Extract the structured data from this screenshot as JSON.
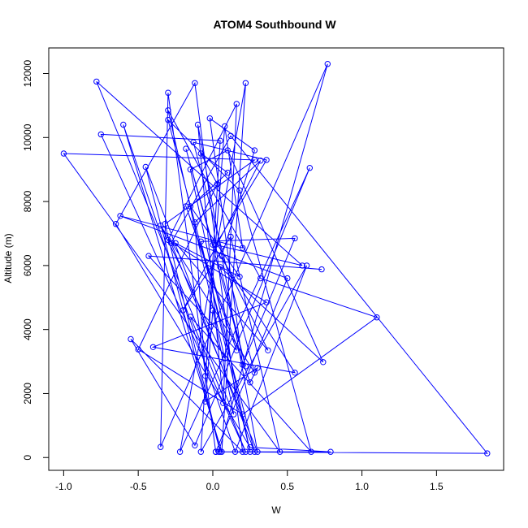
{
  "chart_data": {
    "type": "scatter",
    "title": "ATOM4 Southbound W",
    "xlabel": "W",
    "ylabel": "Altitude (m)",
    "xlim": [
      -1.1,
      1.95
    ],
    "ylim": [
      -400,
      12800
    ],
    "xticks": [
      -1.0,
      -0.5,
      0.0,
      0.5,
      1.0,
      1.5
    ],
    "xtick_labels": [
      "-1.0",
      "-0.5",
      "0.0",
      "0.5",
      "1.0",
      "1.5"
    ],
    "yticks": [
      0,
      2000,
      4000,
      6000,
      8000,
      10000,
      12000
    ],
    "ytick_labels": [
      "0",
      "2000",
      "4000",
      "6000",
      "8000",
      "10000",
      "12000"
    ],
    "grid": false,
    "series": [
      {
        "color": "#0000ff",
        "marker": "open-circle",
        "line": true,
        "x": [
          0.04,
          0.77,
          -0.35,
          -0.3,
          0.02,
          0.79,
          0.25,
          -0.65,
          -0.12,
          0.2,
          -0.55,
          -0.12,
          0.65,
          -0.22,
          0.22,
          0.06,
          -0.6,
          0.15,
          0.63,
          -0.08,
          0.05,
          -0.75,
          0.22,
          -0.15,
          0.66,
          0.18,
          -0.3,
          0.28,
          -0.45,
          0.05,
          -0.32,
          0.28,
          -1.0,
          0.45,
          0.12,
          -0.2,
          0.32,
          -0.12,
          -0.05,
          0.08,
          0.2,
          -0.62,
          0.5,
          0.02,
          1.84,
          0.12,
          -0.28,
          0.3,
          -0.1,
          0.07,
          0.16,
          -0.3,
          0.36,
          -0.4,
          0.55,
          0.0,
          -0.18,
          0.22,
          0.05,
          0.74,
          0.1,
          -0.15,
          0.25,
          -0.08,
          0.55,
          0.2,
          -0.02,
          0.28,
          0.06,
          0.37,
          -0.25,
          0.18,
          -0.15,
          0.1,
          -0.08,
          0.03,
          -0.5,
          0.2,
          1.1,
          0.32,
          -0.3,
          0.08,
          -0.35,
          0.28,
          -0.13,
          0.36,
          0.02,
          0.6,
          -0.78,
          0.14,
          0.0,
          -0.05,
          0.3,
          0.25,
          -0.18,
          0.16,
          -0.43,
          0.73
        ],
        "y": [
          180,
          12300,
          330,
          11400,
          180,
          180,
          320,
          7300,
          11700,
          180,
          3700,
          380,
          9050,
          180,
          11700,
          180,
          10400,
          180,
          6000,
          180,
          9900,
          10100,
          180,
          4400,
          180,
          8350,
          10550,
          180,
          9080,
          180,
          7300,
          9300,
          9500,
          180,
          6900,
          4600,
          9280,
          7350,
          2550,
          10350,
          6550,
          7550,
          5600,
          180,
          130,
          10050,
          6700,
          180,
          10400,
          1700,
          11050,
          6800,
          4850,
          3450,
          2650,
          6650,
          9650,
          2850,
          5950,
          2980,
          9600,
          9000,
          180,
          6750,
          6850,
          2900,
          10600,
          9600,
          6300,
          3350,
          6700,
          5650,
          7850,
          8900,
          9500,
          8550,
          3380,
          1350,
          4380,
          5600,
          10850,
          3100,
          7250,
          2650,
          9850,
          9300,
          6650,
          6000,
          11750,
          1350,
          4600,
          1750,
          2800,
          2350,
          7850,
          3350,
          6300,
          5880
        ]
      }
    ]
  }
}
